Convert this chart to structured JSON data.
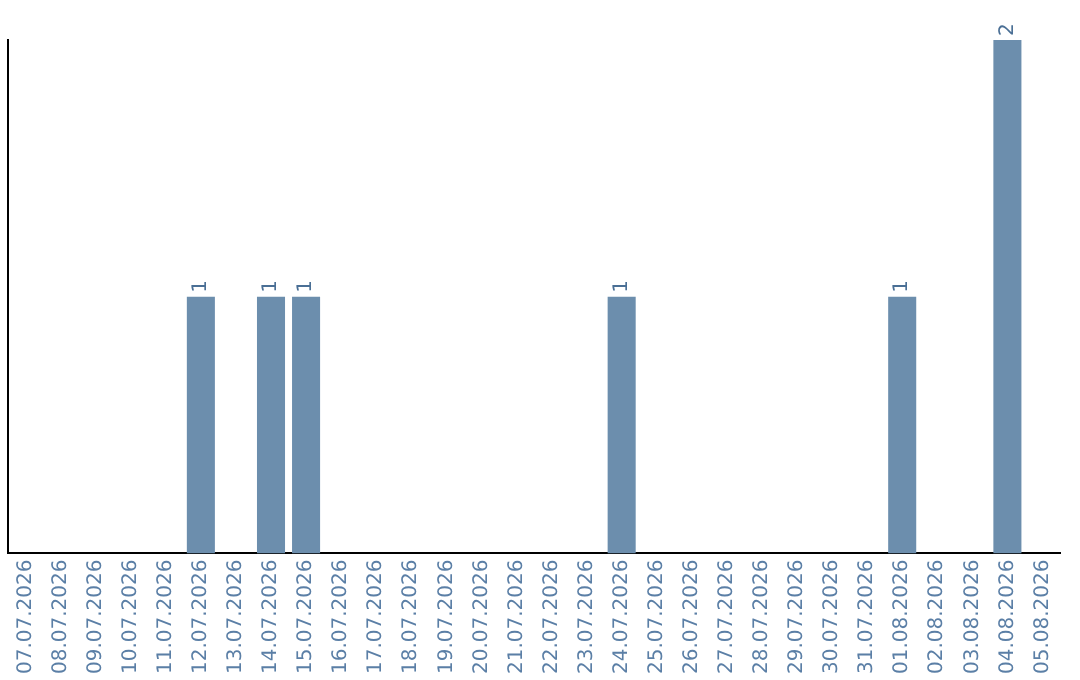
{
  "chart_data": {
    "type": "bar",
    "categories": [
      "07.07.2026",
      "08.07.2026",
      "09.07.2026",
      "10.07.2026",
      "11.07.2026",
      "12.07.2026",
      "13.07.2026",
      "14.07.2026",
      "15.07.2026",
      "16.07.2026",
      "17.07.2026",
      "18.07.2026",
      "19.07.2026",
      "20.07.2026",
      "21.07.2026",
      "22.07.2026",
      "23.07.2026",
      "24.07.2026",
      "25.07.2026",
      "26.07.2026",
      "27.07.2026",
      "28.07.2026",
      "29.07.2026",
      "30.07.2026",
      "31.07.2026",
      "01.08.2026",
      "02.08.2026",
      "03.08.2026",
      "04.08.2026",
      "05.08.2026"
    ],
    "values": [
      0,
      0,
      0,
      0,
      0,
      1,
      0,
      1,
      1,
      0,
      0,
      0,
      0,
      0,
      0,
      0,
      0,
      1,
      0,
      0,
      0,
      0,
      0,
      0,
      0,
      1,
      0,
      0,
      2,
      0
    ],
    "value_labels": [
      null,
      null,
      null,
      null,
      null,
      "1",
      null,
      "1",
      "1",
      null,
      null,
      null,
      null,
      null,
      null,
      null,
      null,
      "1",
      null,
      null,
      null,
      null,
      null,
      null,
      null,
      "1",
      null,
      null,
      "2",
      null
    ],
    "color": "#6c8ead",
    "tick_labels": "x",
    "grid": false,
    "legend": false
  }
}
